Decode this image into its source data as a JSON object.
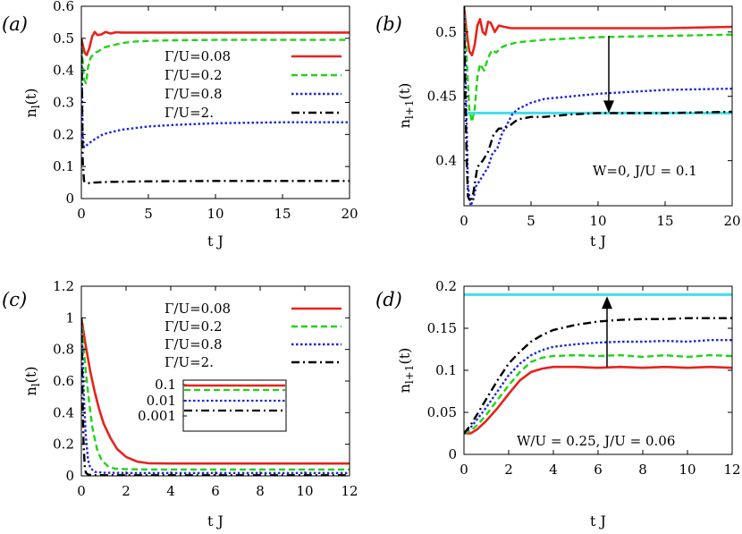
{
  "chart_data": [
    {
      "type": "line",
      "panel_label": "(a)",
      "xlabel": "t J",
      "ylabel": "n_l(t)",
      "xlim": [
        0,
        20
      ],
      "ylim": [
        0,
        0.6
      ],
      "xticks": [
        "0",
        "5",
        "10",
        "15",
        "20"
      ],
      "yticks": [
        "0",
        "0.1",
        "0.2",
        "0.3",
        "0.4",
        "0.5",
        "0.6"
      ],
      "legend": "top-right",
      "series": [
        {
          "name": "Γ/U=0.08",
          "color": "#e8221b",
          "dash": "solid",
          "x": [
            0,
            0.1,
            0.25,
            0.4,
            0.6,
            0.8,
            1.0,
            1.2,
            1.5,
            1.8,
            2.2,
            2.6,
            3.0,
            4,
            5,
            7,
            10,
            15,
            20
          ],
          "y": [
            0.5,
            0.48,
            0.455,
            0.448,
            0.47,
            0.505,
            0.52,
            0.51,
            0.512,
            0.52,
            0.515,
            0.519,
            0.518,
            0.518,
            0.518,
            0.518,
            0.518,
            0.518,
            0.518
          ]
        },
        {
          "name": "Γ/U=0.2",
          "color": "#22d316",
          "dash": "dashed",
          "x": [
            0,
            0.1,
            0.2,
            0.35,
            0.5,
            0.7,
            1.0,
            1.3,
            1.6,
            2.0,
            2.5,
            3.0,
            4,
            5,
            7,
            10,
            15,
            20
          ],
          "y": [
            0.5,
            0.43,
            0.37,
            0.36,
            0.41,
            0.44,
            0.455,
            0.46,
            0.47,
            0.475,
            0.48,
            0.485,
            0.49,
            0.492,
            0.494,
            0.495,
            0.495,
            0.495
          ]
        },
        {
          "name": "Γ/U=0.8",
          "color": "#1b27e0",
          "dash": "dotted",
          "x": [
            0,
            0.05,
            0.1,
            0.2,
            0.35,
            0.5,
            0.8,
            1.2,
            1.6,
            2,
            3,
            4,
            5,
            7,
            10,
            15,
            20
          ],
          "y": [
            0.5,
            0.35,
            0.2,
            0.16,
            0.165,
            0.17,
            0.18,
            0.19,
            0.2,
            0.205,
            0.215,
            0.22,
            0.225,
            0.23,
            0.235,
            0.238,
            0.238
          ]
        },
        {
          "name": "Γ/U=2.",
          "color": "#000000",
          "dash": "dashdot",
          "x": [
            0,
            0.05,
            0.1,
            0.2,
            0.3,
            0.5,
            1,
            2,
            5,
            10,
            15,
            20
          ],
          "y": [
            0.5,
            0.3,
            0.12,
            0.055,
            0.05,
            0.048,
            0.05,
            0.052,
            0.054,
            0.055,
            0.055,
            0.055
          ]
        }
      ]
    },
    {
      "type": "line",
      "panel_label": "(b)",
      "xlabel": "t J",
      "ylabel": "n_l+1(t)",
      "xlim": [
        0,
        20
      ],
      "ylim": [
        0.365,
        0.52
      ],
      "xticks": [
        "0",
        "5",
        "10",
        "15",
        "20"
      ],
      "yticks": [
        "0.4",
        "0.45",
        "0.5"
      ],
      "yticks_values": [
        0.4,
        0.45,
        0.5
      ],
      "annotation": "W=0, J/U = 0.1",
      "reference_line": {
        "y": 0.437,
        "color": "#3ee0ea"
      },
      "arrow": {
        "x": 10.8,
        "from": 0.497,
        "to": 0.437,
        "direction": "down"
      },
      "series": [
        {
          "name": "Γ/U=0.08",
          "color": "#e8221b",
          "dash": "solid",
          "x": [
            0,
            0.2,
            0.4,
            0.6,
            0.8,
            1.0,
            1.2,
            1.4,
            1.6,
            1.8,
            2.0,
            2.3,
            2.6,
            3.0,
            3.5,
            4,
            5,
            6,
            8,
            10,
            15,
            20
          ],
          "y": [
            0.52,
            0.5,
            0.485,
            0.482,
            0.49,
            0.505,
            0.51,
            0.5,
            0.498,
            0.508,
            0.507,
            0.5,
            0.505,
            0.504,
            0.503,
            0.503,
            0.503,
            0.503,
            0.503,
            0.503,
            0.503,
            0.504
          ]
        },
        {
          "name": "Γ/U=0.2",
          "color": "#22d316",
          "dash": "dashed",
          "x": [
            0,
            0.2,
            0.4,
            0.6,
            0.8,
            1.0,
            1.2,
            1.5,
            1.8,
            2.1,
            2.4,
            2.8,
            3.2,
            4,
            5,
            6,
            8,
            10,
            15,
            20
          ],
          "y": [
            0.52,
            0.48,
            0.44,
            0.43,
            0.44,
            0.465,
            0.475,
            0.47,
            0.48,
            0.486,
            0.484,
            0.488,
            0.49,
            0.492,
            0.493,
            0.494,
            0.495,
            0.496,
            0.497,
            0.498
          ]
        },
        {
          "name": "Γ/U=0.8",
          "color": "#1b27e0",
          "dash": "dotted",
          "x": [
            0,
            0.15,
            0.3,
            0.5,
            0.7,
            0.9,
            1.2,
            1.5,
            1.8,
            2.1,
            2.5,
            2.8,
            3.2,
            3.6,
            4,
            5,
            6,
            8,
            10,
            15,
            20
          ],
          "y": [
            0.52,
            0.45,
            0.38,
            0.365,
            0.37,
            0.38,
            0.385,
            0.39,
            0.395,
            0.405,
            0.41,
            0.42,
            0.428,
            0.436,
            0.44,
            0.445,
            0.448,
            0.45,
            0.452,
            0.455,
            0.456
          ]
        },
        {
          "name": "Γ/U=2.",
          "color": "#000000",
          "dash": "dashdot",
          "x": [
            0,
            0.1,
            0.2,
            0.3,
            0.5,
            0.7,
            1.0,
            1.4,
            1.8,
            2.2,
            2.6,
            3.0,
            3.5,
            4,
            5,
            6,
            8,
            10,
            15,
            20
          ],
          "y": [
            0.52,
            0.45,
            0.4,
            0.372,
            0.368,
            0.375,
            0.395,
            0.4,
            0.407,
            0.42,
            0.425,
            0.425,
            0.428,
            0.432,
            0.434,
            0.434,
            0.436,
            0.437,
            0.437,
            0.438
          ]
        }
      ]
    },
    {
      "type": "line",
      "panel_label": "(c)",
      "xlabel": "t J",
      "ylabel": "n_l(t)",
      "xlim": [
        0,
        12
      ],
      "ylim": [
        0,
        1.2
      ],
      "xticks": [
        "0",
        "2",
        "4",
        "6",
        "8",
        "10",
        "12"
      ],
      "yticks": [
        "0",
        "0.2",
        "0.4",
        "0.6",
        "0.8",
        "1",
        "1.2"
      ],
      "legend": "top-right",
      "inset": {
        "yticks": [
          "0.1",
          "0.01",
          "0.001"
        ],
        "scale": "log"
      },
      "series": [
        {
          "name": "Γ/U=0.08",
          "color": "#e8221b",
          "dash": "solid",
          "x": [
            0,
            0.2,
            0.4,
            0.6,
            0.8,
            1.0,
            1.3,
            1.6,
            2.0,
            2.5,
            3.0,
            4,
            6,
            8,
            10,
            12
          ],
          "y": [
            1.0,
            0.82,
            0.66,
            0.53,
            0.42,
            0.33,
            0.24,
            0.17,
            0.12,
            0.09,
            0.08,
            0.078,
            0.078,
            0.078,
            0.078,
            0.078
          ]
        },
        {
          "name": "Γ/U=0.2",
          "color": "#22d316",
          "dash": "dashed",
          "x": [
            0,
            0.1,
            0.2,
            0.35,
            0.5,
            0.7,
            0.9,
            1.2,
            1.5,
            2.0,
            3,
            5,
            8,
            12
          ],
          "y": [
            1.0,
            0.82,
            0.66,
            0.46,
            0.3,
            0.17,
            0.1,
            0.06,
            0.045,
            0.042,
            0.04,
            0.04,
            0.04,
            0.04
          ]
        },
        {
          "name": "Γ/U=0.8",
          "color": "#1b27e0",
          "dash": "dotted",
          "x": [
            0,
            0.05,
            0.1,
            0.15,
            0.2,
            0.3,
            0.4,
            0.6,
            1.0,
            2,
            5,
            12
          ],
          "y": [
            1.0,
            0.78,
            0.55,
            0.38,
            0.25,
            0.1,
            0.05,
            0.025,
            0.02,
            0.018,
            0.018,
            0.018
          ]
        },
        {
          "name": "Γ/U=2.",
          "color": "#000000",
          "dash": "dashdot",
          "x": [
            0,
            0.03,
            0.06,
            0.1,
            0.15,
            0.2,
            0.3,
            0.5,
            1,
            12
          ],
          "y": [
            1.0,
            0.7,
            0.45,
            0.2,
            0.06,
            0.02,
            0.008,
            0.005,
            0.004,
            0.004
          ]
        }
      ]
    },
    {
      "type": "line",
      "panel_label": "(d)",
      "xlabel": "t J",
      "ylabel": "n_l+1(t)",
      "xlim": [
        0,
        12
      ],
      "ylim": [
        0,
        0.2
      ],
      "xticks": [
        "0",
        "2",
        "4",
        "6",
        "8",
        "10",
        "12"
      ],
      "yticks": [
        "0",
        "0.05",
        "0.1",
        "0.15",
        "0.2"
      ],
      "annotation": "W/U = 0.25, J/U = 0.06",
      "reference_line": {
        "y": 0.19,
        "color": "#3ee0ea"
      },
      "arrow": {
        "x": 6.4,
        "from": 0.104,
        "to": 0.188,
        "direction": "up"
      },
      "series": [
        {
          "name": "Γ/U=0.08",
          "color": "#e8221b",
          "dash": "solid",
          "x": [
            0,
            0.3,
            0.6,
            1.0,
            1.5,
            2.0,
            2.5,
            3.0,
            3.5,
            4.0,
            5,
            6,
            7,
            8,
            9,
            10,
            11,
            12
          ],
          "y": [
            0.025,
            0.025,
            0.03,
            0.04,
            0.055,
            0.072,
            0.088,
            0.098,
            0.102,
            0.104,
            0.104,
            0.103,
            0.104,
            0.103,
            0.104,
            0.103,
            0.104,
            0.103
          ]
        },
        {
          "name": "Γ/U=0.2",
          "color": "#22d316",
          "dash": "dashed",
          "x": [
            0,
            0.3,
            0.6,
            1.0,
            1.5,
            2.0,
            2.5,
            3.0,
            3.5,
            4.0,
            5,
            6,
            7,
            8,
            9,
            10,
            11,
            12
          ],
          "y": [
            0.025,
            0.028,
            0.035,
            0.047,
            0.065,
            0.082,
            0.098,
            0.11,
            0.115,
            0.117,
            0.118,
            0.117,
            0.118,
            0.116,
            0.118,
            0.116,
            0.118,
            0.117
          ]
        },
        {
          "name": "Γ/U=0.8",
          "color": "#1b27e0",
          "dash": "dotted",
          "x": [
            0,
            0.3,
            0.6,
            1.0,
            1.5,
            2.0,
            2.5,
            3.0,
            3.5,
            4.0,
            5,
            6,
            7,
            8,
            9,
            10,
            11,
            12
          ],
          "y": [
            0.025,
            0.032,
            0.042,
            0.056,
            0.075,
            0.094,
            0.108,
            0.118,
            0.124,
            0.128,
            0.131,
            0.133,
            0.134,
            0.134,
            0.135,
            0.134,
            0.136,
            0.136
          ]
        },
        {
          "name": "Γ/U=2.",
          "color": "#000000",
          "dash": "dashdot",
          "x": [
            0,
            0.3,
            0.6,
            1.0,
            1.5,
            2.0,
            2.5,
            3.0,
            3.5,
            4.0,
            5,
            6,
            7,
            8,
            9,
            10,
            11,
            12
          ],
          "y": [
            0.025,
            0.035,
            0.048,
            0.066,
            0.088,
            0.108,
            0.122,
            0.134,
            0.142,
            0.148,
            0.154,
            0.158,
            0.16,
            0.161,
            0.161,
            0.162,
            0.162,
            0.162
          ]
        }
      ]
    }
  ]
}
